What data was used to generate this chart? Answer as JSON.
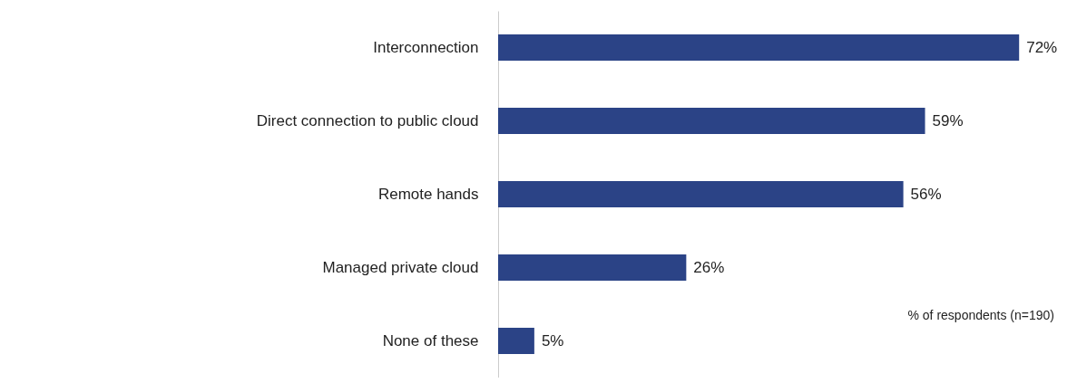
{
  "chart_data": {
    "type": "bar",
    "orientation": "horizontal",
    "categories": [
      "Interconnection",
      "Direct connection to public cloud",
      "Remote hands",
      "Managed private cloud",
      "None of  these"
    ],
    "values": [
      72,
      59,
      56,
      26,
      5
    ],
    "value_labels": [
      "72%",
      "59%",
      "56%",
      "26%",
      "5%"
    ],
    "color": "#2b4386",
    "xlim": [
      0,
      80
    ],
    "annotations": [
      "% of respondents (n=190)"
    ]
  }
}
